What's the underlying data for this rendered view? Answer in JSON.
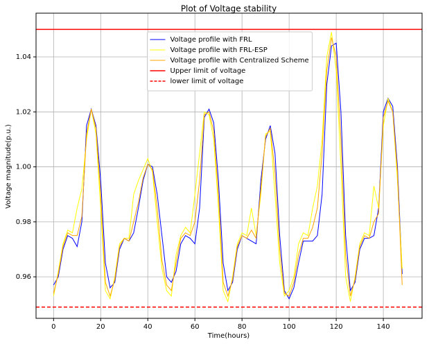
{
  "chart_data": {
    "type": "line",
    "title": "Plot of Voltage stability",
    "xlabel": "Time(hours)",
    "ylabel": "Voltage magnitude(p.u.)",
    "x": [
      0,
      2,
      4,
      6,
      8,
      10,
      12,
      14,
      16,
      18,
      20,
      22,
      24,
      26,
      28,
      30,
      32,
      34,
      36,
      38,
      40,
      42,
      44,
      46,
      48,
      50,
      52,
      54,
      56,
      58,
      60,
      62,
      64,
      66,
      68,
      70,
      72,
      74,
      76,
      78,
      80,
      82,
      84,
      86,
      88,
      90,
      92,
      94,
      96,
      98,
      100,
      102,
      104,
      106,
      108,
      110,
      112,
      114,
      116,
      118,
      120,
      122,
      124,
      126,
      128,
      130,
      132,
      134,
      136,
      138,
      140,
      142,
      144,
      146,
      148
    ],
    "series": [
      {
        "name": "Voltage profile with FRL",
        "color": "#0000ff",
        "values": [
          0.957,
          0.96,
          0.97,
          0.975,
          0.974,
          0.971,
          0.98,
          1.015,
          1.021,
          1.015,
          0.995,
          0.965,
          0.956,
          0.958,
          0.97,
          0.974,
          0.973,
          0.976,
          0.985,
          0.995,
          1.001,
          1.0,
          0.99,
          0.975,
          0.96,
          0.958,
          0.962,
          0.972,
          0.975,
          0.974,
          0.972,
          0.985,
          1.018,
          1.021,
          1.016,
          0.995,
          0.965,
          0.955,
          0.958,
          0.97,
          0.975,
          0.974,
          0.973,
          0.972,
          0.995,
          1.01,
          1.015,
          1.005,
          0.975,
          0.955,
          0.952,
          0.956,
          0.965,
          0.973,
          0.973,
          0.973,
          0.975,
          0.99,
          1.03,
          1.044,
          1.045,
          1.02,
          0.975,
          0.955,
          0.958,
          0.97,
          0.974,
          0.974,
          0.975,
          0.985,
          1.02,
          1.025,
          1.022,
          1.0,
          0.961
        ]
      },
      {
        "name": "Voltage profile with FRL-ESP",
        "color": "#ffff00",
        "values": [
          0.953,
          0.962,
          0.972,
          0.977,
          0.976,
          0.985,
          0.992,
          1.01,
          1.021,
          1.012,
          0.985,
          0.955,
          0.952,
          0.96,
          0.972,
          0.974,
          0.974,
          0.99,
          0.995,
          0.999,
          1.003,
          0.998,
          0.98,
          0.963,
          0.955,
          0.953,
          0.968,
          0.975,
          0.978,
          0.976,
          0.99,
          1.005,
          1.02,
          1.019,
          1.01,
          0.985,
          0.955,
          0.951,
          0.96,
          0.972,
          0.976,
          0.975,
          0.985,
          0.975,
          0.99,
          1.012,
          1.013,
          0.99,
          0.965,
          0.953,
          0.955,
          0.96,
          0.972,
          0.976,
          0.975,
          0.985,
          0.993,
          1.01,
          1.04,
          1.049,
          1.035,
          1.0,
          0.96,
          0.951,
          0.96,
          0.972,
          0.976,
          0.975,
          0.993,
          0.985,
          1.015,
          1.025,
          1.02,
          0.995,
          0.963
        ]
      },
      {
        "name": "Voltage profile with Centralized Scheme",
        "color": "#ffa500",
        "values": [
          0.954,
          0.961,
          0.971,
          0.976,
          0.975,
          0.975,
          0.982,
          1.012,
          1.021,
          1.014,
          0.99,
          0.958,
          0.953,
          0.959,
          0.971,
          0.974,
          0.973,
          0.98,
          0.987,
          0.996,
          1.001,
          0.999,
          0.985,
          0.966,
          0.957,
          0.955,
          0.965,
          0.974,
          0.976,
          0.975,
          0.98,
          0.995,
          1.019,
          1.02,
          1.013,
          0.99,
          0.958,
          0.953,
          0.959,
          0.971,
          0.975,
          0.974,
          0.977,
          0.974,
          0.992,
          1.011,
          1.014,
          0.998,
          0.97,
          0.954,
          0.953,
          0.958,
          0.968,
          0.974,
          0.974,
          0.978,
          0.985,
          1.005,
          1.035,
          1.047,
          1.04,
          1.01,
          0.968,
          0.953,
          0.959,
          0.971,
          0.975,
          0.974,
          0.98,
          0.983,
          1.018,
          1.024,
          1.02,
          0.998,
          0.957
        ]
      }
    ],
    "limits": [
      {
        "name": "Upper limit of voltage",
        "value": 1.05,
        "color": "#ff0000",
        "dashed": false
      },
      {
        "name": "lower limit of voltage",
        "value": 0.949,
        "color": "#ff0000",
        "dashed": true
      }
    ],
    "xlim": [
      -7.45,
      156.45
    ],
    "xticks": [
      0,
      20,
      40,
      60,
      80,
      100,
      120,
      140
    ],
    "ylim": [
      0.9449,
      1.0559
    ],
    "yticks": [
      0.96,
      0.98,
      {
        "value": 1,
        "label": "1.00"
      },
      1.02,
      1.04
    ],
    "grid": true,
    "legend": "upper center"
  }
}
